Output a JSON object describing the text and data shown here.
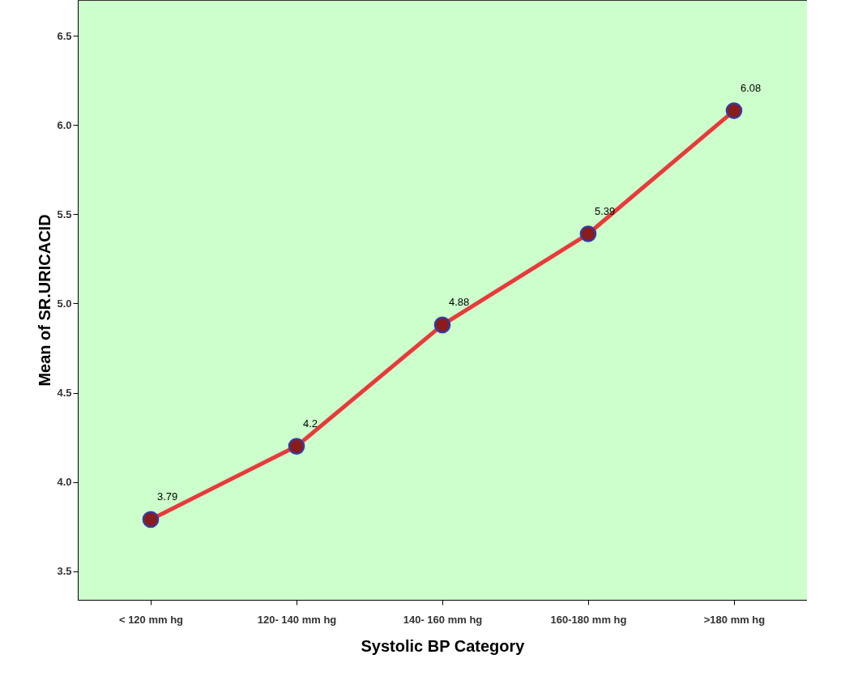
{
  "chart_data": {
    "type": "line",
    "xlabel": "Systolic BP Category",
    "ylabel": "Mean of SR.URICACID",
    "categories": [
      "< 120 mm hg",
      "120- 140 mm hg",
      "140- 160 mm hg",
      "160-180 mm hg",
      ">180 mm hg"
    ],
    "series": [
      {
        "color": "#e83a3a",
        "values": [
          3.79,
          4.2,
          4.88,
          5.39,
          6.08
        ]
      }
    ],
    "ylim": [
      3.34,
      6.7
    ],
    "yticks": [
      {
        "value": 3.5,
        "label": "3.5"
      },
      {
        "value": 4,
        "label": "4.0"
      },
      {
        "value": 4.5,
        "label": "4.5"
      },
      {
        "value": 5,
        "label": "5.0"
      },
      {
        "value": 5.5,
        "label": "5.5"
      },
      {
        "value": 6,
        "label": "6.0"
      },
      {
        "value": 6.5,
        "label": "6.5"
      }
    ],
    "marker": "circle",
    "line_style": "solid",
    "data_labels": true,
    "grid": false
  }
}
